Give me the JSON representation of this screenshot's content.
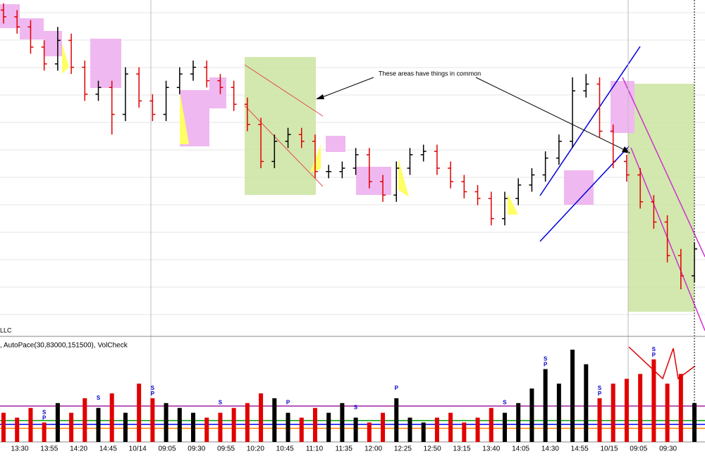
{
  "chart_data": [
    {
      "type": "ohlc",
      "annotation": "These areas have things in common",
      "footer": "LLC",
      "open": [
        97,
        95,
        92,
        86,
        81,
        88,
        80,
        72,
        74,
        66,
        78,
        70,
        66,
        74,
        78,
        80,
        76,
        74,
        69,
        63,
        52,
        58,
        60,
        58,
        49,
        49,
        50,
        54,
        46,
        42,
        50,
        54,
        55,
        50,
        46,
        43,
        41,
        35,
        41,
        45,
        48,
        53,
        58,
        73,
        75,
        61,
        52,
        48,
        40,
        34,
        24,
        18
      ],
      "high": [
        99,
        97,
        94,
        88,
        92,
        90,
        82,
        76,
        76,
        80,
        80,
        72,
        76,
        80,
        82,
        82,
        78,
        76,
        71,
        65,
        60,
        62,
        62,
        60,
        51,
        52,
        56,
        56,
        48,
        52,
        56,
        57,
        57,
        52,
        48,
        45,
        43,
        43,
        47,
        50,
        55,
        60,
        77,
        78,
        77,
        63,
        54,
        50,
        42,
        36,
        26,
        28
      ],
      "low": [
        93,
        90,
        84,
        79,
        79,
        78,
        70,
        70,
        60,
        64,
        68,
        64,
        64,
        72,
        76,
        74,
        72,
        67,
        61,
        50,
        50,
        56,
        56,
        47,
        47,
        47,
        48,
        44,
        40,
        40,
        48,
        52,
        48,
        44,
        41,
        39,
        33,
        33,
        39,
        43,
        46,
        51,
        56,
        71,
        59,
        50,
        46,
        38,
        32,
        22,
        14,
        16
      ],
      "close": [
        95,
        92,
        86,
        81,
        88,
        80,
        72,
        74,
        66,
        78,
        70,
        66,
        74,
        78,
        80,
        76,
        74,
        69,
        63,
        52,
        58,
        60,
        58,
        49,
        49,
        50,
        54,
        46,
        42,
        50,
        54,
        55,
        50,
        46,
        43,
        41,
        35,
        41,
        45,
        48,
        53,
        58,
        73,
        75,
        61,
        52,
        48,
        40,
        34,
        24,
        18,
        26
      ],
      "ylim": [
        0,
        100
      ],
      "up_color": "#000000",
      "down_color": "#e00000",
      "grid": true
    },
    {
      "type": "bar",
      "title": ", AutoPace(30,83000,151500), VolCheck",
      "values": [
        30,
        25,
        35,
        20,
        40,
        30,
        45,
        35,
        50,
        30,
        60,
        45,
        40,
        35,
        30,
        25,
        30,
        35,
        40,
        50,
        45,
        30,
        25,
        35,
        30,
        40,
        25,
        20,
        30,
        45,
        25,
        20,
        25,
        30,
        20,
        25,
        35,
        30,
        40,
        55,
        75,
        60,
        95,
        80,
        45,
        60,
        65,
        70,
        85,
        60,
        70,
        40
      ],
      "ylim": [
        0,
        100
      ],
      "levels": [
        {
          "value": 37,
          "color": "#a020a0"
        },
        {
          "value": 22,
          "color": "#00a000"
        },
        {
          "value": 18,
          "color": "#0000ff"
        },
        {
          "value": 14,
          "color": "#ff8000"
        }
      ],
      "signals": [
        {
          "bar": 3,
          "text": "S"
        },
        {
          "bar": 3,
          "text": "P"
        },
        {
          "bar": 7,
          "text": "S"
        },
        {
          "bar": 11,
          "text": "S"
        },
        {
          "bar": 11,
          "text": "P"
        },
        {
          "bar": 16,
          "text": "S"
        },
        {
          "bar": 21,
          "text": "P"
        },
        {
          "bar": 26,
          "text": "S"
        },
        {
          "bar": 29,
          "text": "P"
        },
        {
          "bar": 37,
          "text": "S"
        },
        {
          "bar": 40,
          "text": "S"
        },
        {
          "bar": 40,
          "text": "P"
        },
        {
          "bar": 44,
          "text": "S"
        },
        {
          "bar": 44,
          "text": "P"
        },
        {
          "bar": 48,
          "text": "S"
        },
        {
          "bar": 48,
          "text": "P"
        }
      ],
      "time_labels": [
        "13:30",
        "13:55",
        "14:20",
        "14:45",
        "10/14",
        "09:05",
        "09:30",
        "09:55",
        "10:20",
        "10:45",
        "11:10",
        "11:35",
        "12:00",
        "12:25",
        "12:50",
        "13:15",
        "13:40",
        "14:05",
        "14:30",
        "14:55",
        "10/15",
        "09:05",
        "09:30"
      ]
    }
  ]
}
